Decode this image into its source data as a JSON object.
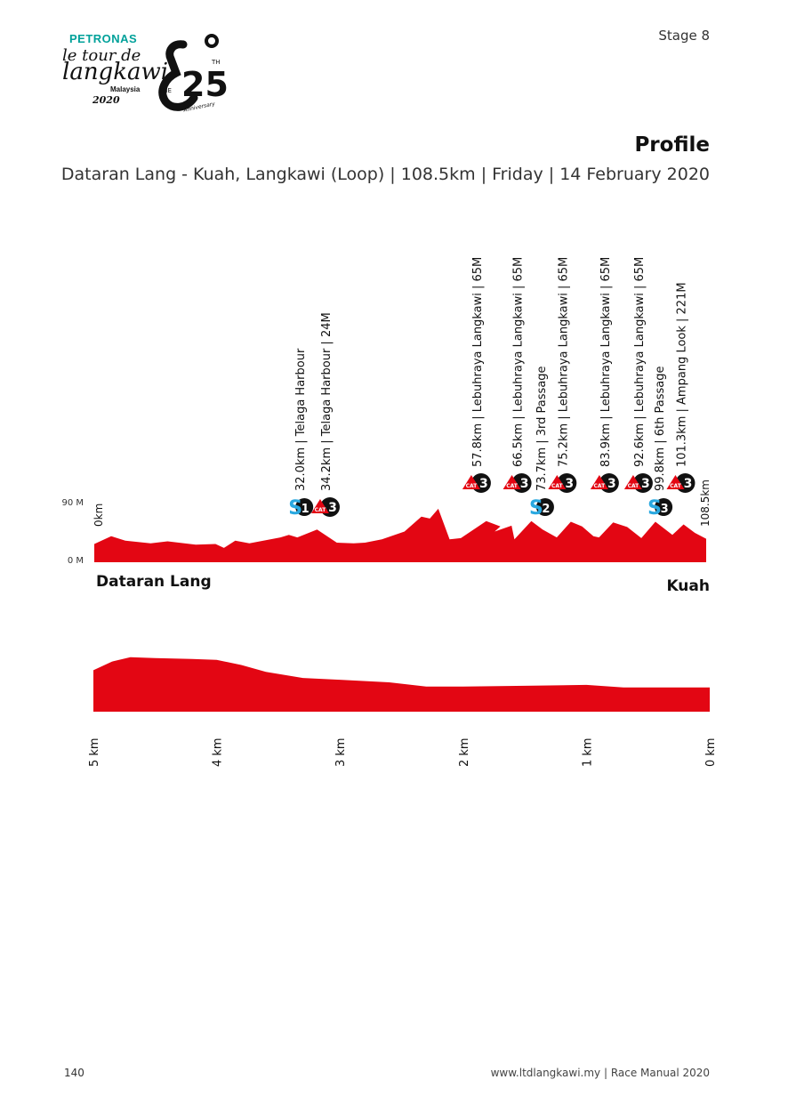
{
  "header": {
    "brand_sponsor": "PETRONAS",
    "event_name_line1": "le tour de",
    "event_name_line2": "langkawi",
    "event_country": "Malaysia",
    "event_year": "2020",
    "anniversary_the": "THE",
    "anniversary_number": "25",
    "anniversary_th": "TH",
    "anniversary_word": "Anniversary",
    "stage_label": "Stage 8",
    "profile_title": "Profile",
    "profile_subtitle": "Dataran Lang - Kuah, Langkawi (Loop) | 108.5km | Friday | 14 February 2020"
  },
  "colors": {
    "profile_red": "#e30613",
    "sprint_blue": "#29a8e0",
    "badge_black": "#111111",
    "teal": "#00a19a"
  },
  "stage_profile": {
    "y_axis_top_label": "90 M",
    "y_axis_bottom_label": "0 M",
    "y_range_m": [
      0,
      90
    ],
    "x_range_km": [
      0,
      108.5
    ],
    "start_km_label": "0km",
    "end_km_label": "108.5km",
    "start_name": "Dataran Lang",
    "finish_name": "Kuah",
    "elevation_points": [
      [
        0,
        28
      ],
      [
        3,
        40
      ],
      [
        5.5,
        33
      ],
      [
        10,
        29
      ],
      [
        13,
        32
      ],
      [
        18,
        27
      ],
      [
        21.5,
        28
      ],
      [
        23,
        22
      ],
      [
        25,
        33
      ],
      [
        27.5,
        29
      ],
      [
        33,
        38
      ],
      [
        34.5,
        42
      ],
      [
        36,
        38
      ],
      [
        39.5,
        50
      ],
      [
        43,
        30
      ],
      [
        46,
        29
      ],
      [
        48,
        30
      ],
      [
        51,
        35
      ],
      [
        55,
        47
      ],
      [
        58,
        70
      ],
      [
        59.5,
        67
      ],
      [
        61,
        82
      ],
      [
        63,
        35
      ],
      [
        65,
        37
      ],
      [
        69.5,
        63
      ],
      [
        72,
        55
      ],
      [
        71,
        47
      ],
      [
        74,
        56
      ],
      [
        74.5,
        35
      ],
      [
        77.5,
        63
      ],
      [
        79.5,
        50
      ],
      [
        82,
        38
      ],
      [
        84.5,
        62
      ],
      [
        86.5,
        55
      ],
      [
        88.5,
        40
      ],
      [
        89.5,
        38
      ],
      [
        92,
        61
      ],
      [
        94.5,
        54
      ],
      [
        97,
        37
      ],
      [
        99.5,
        62
      ],
      [
        102.5,
        42
      ],
      [
        104.5,
        58
      ],
      [
        106.5,
        45
      ],
      [
        108.5,
        36
      ]
    ],
    "sprints": [
      {
        "label": "S",
        "number": "1",
        "km": 36.3,
        "text": "32.0km | Telaga Harbour"
      },
      {
        "label": "S",
        "number": "2",
        "km": 79.0,
        "text": "73.7km | 3rd Passage"
      },
      {
        "label": "S",
        "number": "3",
        "km": 100.0,
        "text": "99.8km | 6th Passage"
      }
    ],
    "climbs": [
      {
        "cat": "CAT",
        "number": "3",
        "km": 41.0,
        "text": "34.2km | Telaga Harbour | 24M",
        "row": "low"
      },
      {
        "cat": "CAT",
        "number": "3",
        "km": 67.8,
        "text": "57.8km | Lebuhraya Langkawi | 65M",
        "row": "high"
      },
      {
        "cat": "CAT",
        "number": "3",
        "km": 75.0,
        "text": "66.5km | Lebuhraya Langkawi | 65M",
        "row": "high"
      },
      {
        "cat": "CAT",
        "number": "3",
        "km": 83.0,
        "text": "75.2km | Lebuhraya Langkawi | 65M",
        "row": "high"
      },
      {
        "cat": "CAT",
        "number": "3",
        "km": 90.5,
        "text": "83.9km | Lebuhraya Langkawi | 65M",
        "row": "high"
      },
      {
        "cat": "CAT",
        "number": "3",
        "km": 96.5,
        "text": "92.6km | Lebuhraya Langkawi | 65M",
        "row": "high"
      },
      {
        "cat": "CAT",
        "number": "3",
        "km": 104.0,
        "text": "101.3km | Ampang Look | 221M",
        "row": "high"
      }
    ]
  },
  "finish_profile": {
    "x_range_km": [
      5,
      0
    ],
    "x_ticks": [
      "5 km",
      "4 km",
      "3 km",
      "2 km",
      "1 km",
      "0 km"
    ],
    "x_tick_values": [
      5,
      4,
      3,
      2,
      1,
      0
    ],
    "elevation_points": [
      [
        5,
        48
      ],
      [
        4.85,
        58
      ],
      [
        4.7,
        63
      ],
      [
        4.5,
        62
      ],
      [
        4.2,
        61
      ],
      [
        4,
        60
      ],
      [
        3.8,
        54
      ],
      [
        3.6,
        46
      ],
      [
        3.3,
        39
      ],
      [
        3,
        37
      ],
      [
        2.6,
        34
      ],
      [
        2.3,
        29
      ],
      [
        2,
        29
      ],
      [
        1.5,
        30
      ],
      [
        1,
        31
      ],
      [
        0.7,
        28
      ],
      [
        0.5,
        28
      ],
      [
        0,
        28
      ]
    ],
    "y_range_rel": [
      0,
      70
    ]
  },
  "footer": {
    "page_number": "140",
    "site": "www.ltdlangkawi.my | Race Manual 2020"
  }
}
